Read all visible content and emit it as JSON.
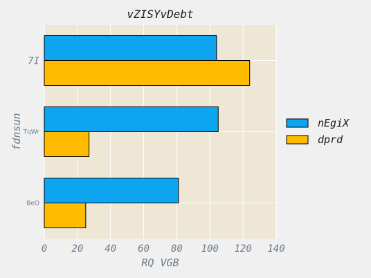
{
  "chart_data": {
    "type": "bar",
    "orientation": "horizontal",
    "title": "vZISYvDebt",
    "xlabel": "RQ VGB",
    "ylabel": "fdnsun",
    "categories": [
      "7I",
      "TqWr",
      "BeO"
    ],
    "series": [
      {
        "name": "nEgiX",
        "values": [
          104,
          105,
          81
        ],
        "color": "#0da5f0"
      },
      {
        "name": "dprd",
        "values": [
          124,
          27,
          25
        ],
        "color": "#ffbb00"
      }
    ],
    "xlim": [
      0,
      140
    ],
    "xticks": [
      "0",
      "20",
      "40",
      "60",
      "80",
      "100",
      "120",
      "140"
    ],
    "grid": true,
    "legend_position": "right"
  },
  "colors": {
    "figure_bg": "#f0f0f0",
    "plot_bg": "#efe7d6",
    "grid": "#ffffff",
    "bar_edge": "#000000"
  }
}
